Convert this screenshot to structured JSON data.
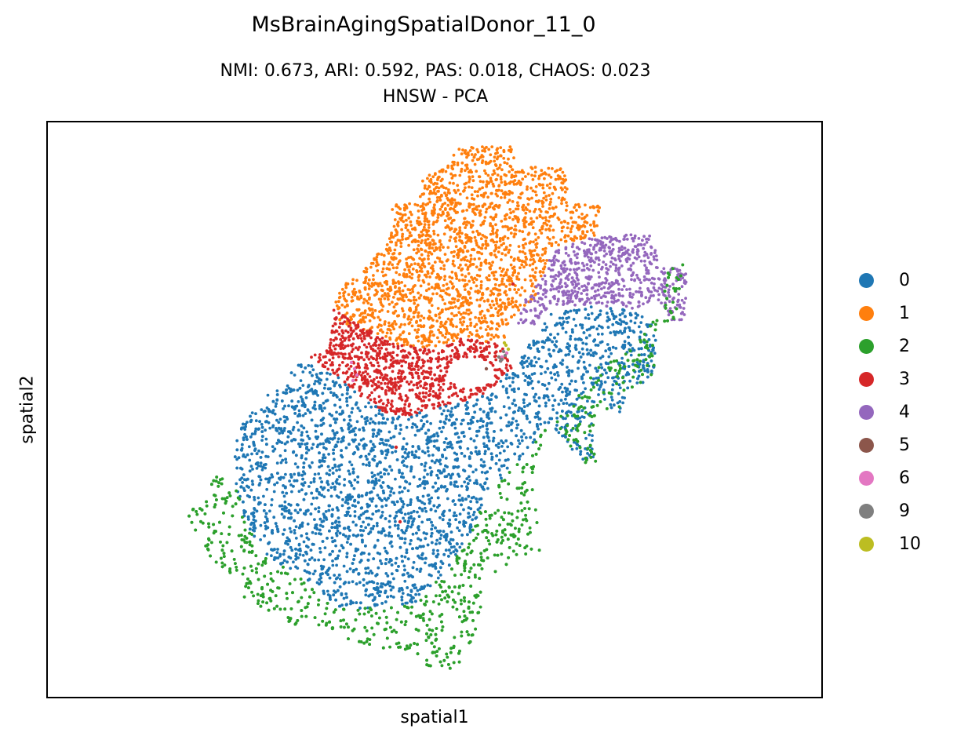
{
  "figure": {
    "title": "MsBrainAgingSpatialDonor_11_0",
    "subtitle_line1": "NMI: 0.673,  ARI: 0.592,  PAS: 0.018,  CHAOS: 0.023",
    "subtitle_line2": "HNSW - PCA"
  },
  "chart_data": {
    "type": "scatter",
    "title": "MsBrainAgingSpatialDonor_11_0",
    "xlabel": "spatial1",
    "ylabel": "spatial2",
    "ticks": "none",
    "legend_position": "right-outside",
    "series": [
      {
        "name": "0",
        "color": "#1f77b4"
      },
      {
        "name": "1",
        "color": "#ff7f0e"
      },
      {
        "name": "2",
        "color": "#2ca02c"
      },
      {
        "name": "3",
        "color": "#d62728"
      },
      {
        "name": "4",
        "color": "#9467bd"
      },
      {
        "name": "5",
        "color": "#8c564b"
      },
      {
        "name": "6",
        "color": "#e377c2"
      },
      {
        "name": "9",
        "color": "#7f7f7f"
      },
      {
        "name": "10",
        "color": "#bcbd22"
      }
    ]
  }
}
